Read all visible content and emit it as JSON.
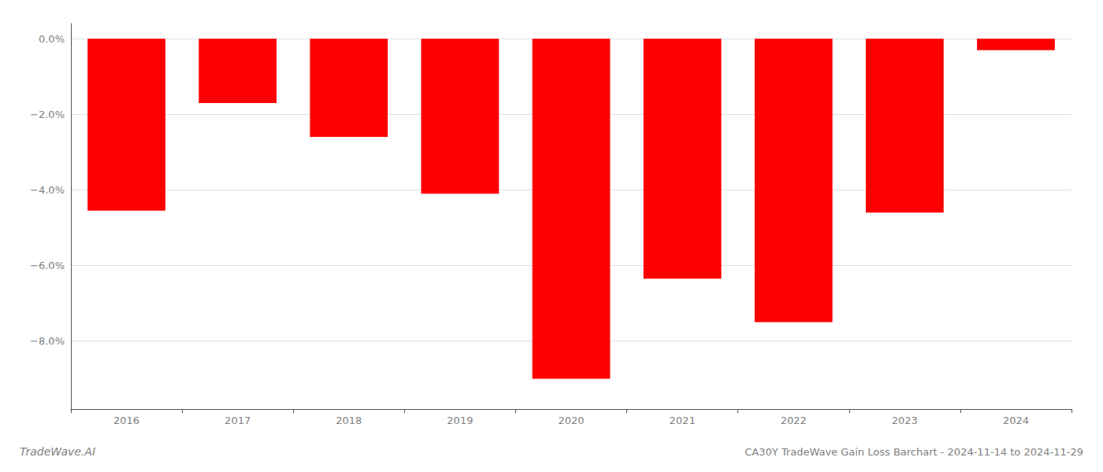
{
  "chart_data": {
    "type": "bar",
    "title": "CA30Y TradeWave Gain Loss Barchart - 2024-11-14 to 2024-11-29",
    "annotations": [
      "TradeWave.AI"
    ],
    "categories": [
      "2016",
      "2017",
      "2018",
      "2019",
      "2020",
      "2021",
      "2022",
      "2023",
      "2024"
    ],
    "values": [
      -0.0455,
      -0.017,
      -0.026,
      -0.041,
      -0.09,
      -0.0635,
      -0.075,
      -0.046,
      -0.003
    ],
    "color": "#ff0000",
    "ylim": [
      -0.098,
      0.004
    ],
    "yticks": [
      {
        "value": 0.0,
        "label": "0.0%"
      },
      {
        "value": -0.02,
        "label": "−2.0%"
      },
      {
        "value": -0.04,
        "label": "−4.0%"
      },
      {
        "value": -0.06,
        "label": "−6.0%"
      },
      {
        "value": -0.08,
        "label": "−8.0%"
      }
    ],
    "grid": true
  }
}
